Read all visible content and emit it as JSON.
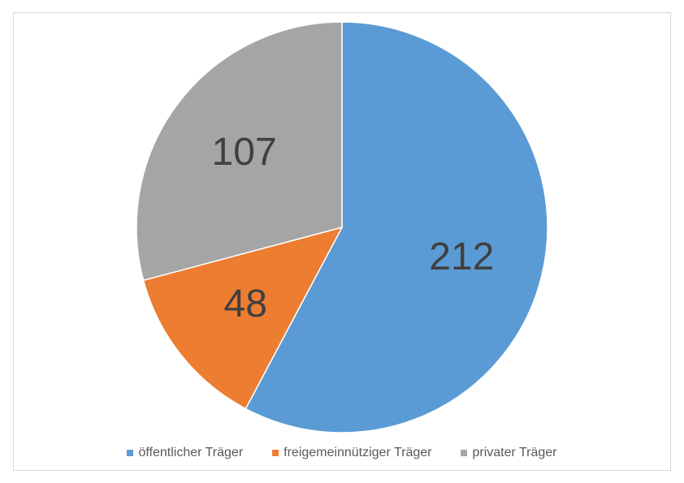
{
  "chart_data": {
    "type": "pie",
    "title": "",
    "categories": [
      "öffentlicher Träger",
      "freigemeinnütziger Träger",
      "privater Träger"
    ],
    "values": [
      212,
      48,
      107
    ],
    "colors": [
      "#5b9bd5",
      "#ed7d31",
      "#a5a5a5"
    ],
    "data_labels": [
      "212",
      "48",
      "107"
    ],
    "legend_position": "bottom",
    "start_angle": "top, clockwise"
  }
}
